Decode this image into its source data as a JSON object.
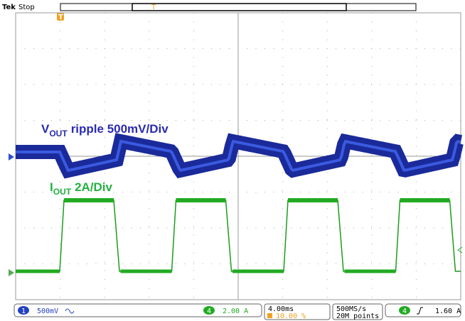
{
  "header": {
    "brand": "Tek",
    "status": "Stop",
    "trigger_marker": "T"
  },
  "labels": {
    "vout": {
      "main": "V",
      "sub": "OUT",
      "rest": "ripple 500mV/Div"
    },
    "iout": {
      "main": "I",
      "sub": "OUT",
      "rest": "2A/Div"
    }
  },
  "status_bar": {
    "ch1": {
      "number": "1",
      "scale": "500mV"
    },
    "ch4": {
      "number": "4",
      "scale": "2.00 A"
    },
    "timebase": {
      "scale": "4.00ms",
      "trigger_position": "10.00 %"
    },
    "acquisition": {
      "rate": "500MS/s",
      "record": "20M points"
    },
    "trigger": {
      "source": "4",
      "level": "1.60 A"
    }
  }
}
